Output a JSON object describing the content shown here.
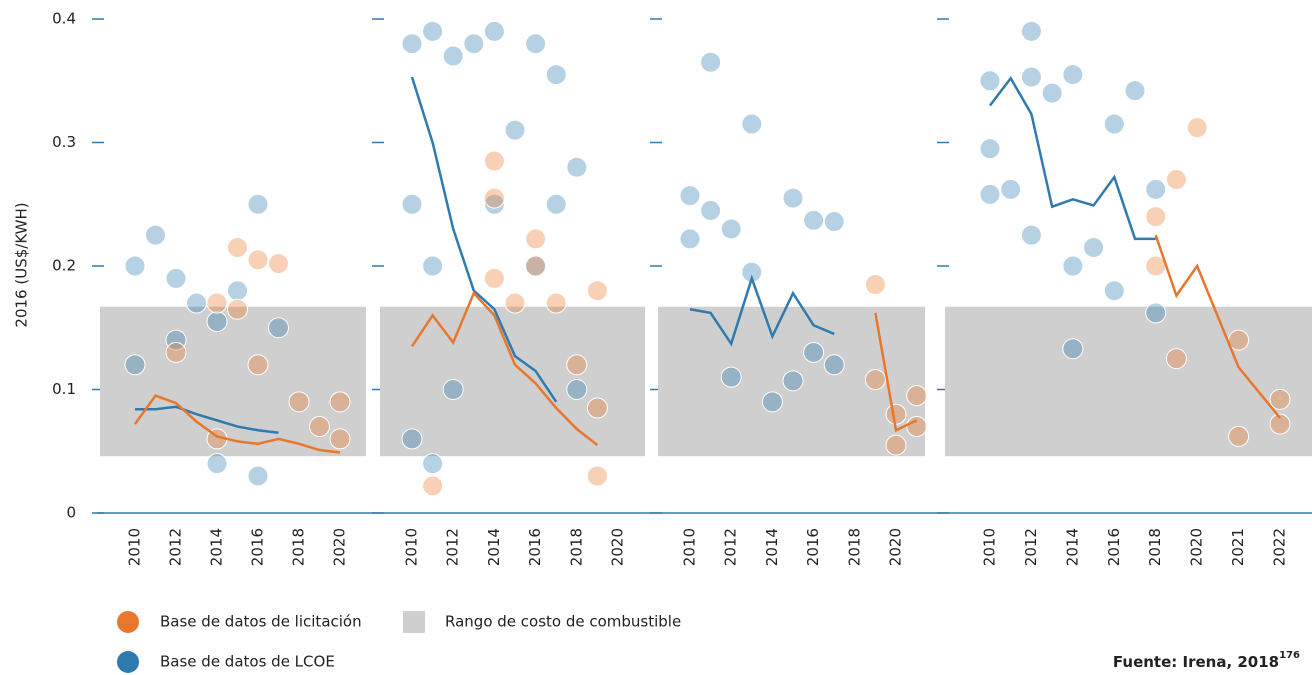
{
  "chart_data": {
    "type": "scatter",
    "ylabel": "2016 (US$/KWH)",
    "ylim": [
      0,
      0.4
    ],
    "yticks": [
      0,
      0.1,
      0.2,
      0.3,
      0.4
    ],
    "fuel_cost_range": [
      0.046,
      0.167
    ],
    "fuel_cost_label": "Rango de costo de combustible",
    "fuel_cost_color": "#cfcfcf",
    "series": [
      {
        "name": "Base de datos de licitación",
        "color": "#e8772e"
      },
      {
        "name": "Base de datos de LCOE",
        "color": "#2f7bb0"
      }
    ],
    "source": "Fuente: Irena, 2018",
    "source_ref": "176",
    "panels": [
      {
        "xlim": [
          2008.3,
          2021.3
        ],
        "xticks": [
          2010,
          2012,
          2014,
          2016,
          2018,
          2020
        ],
        "lcoe_line": {
          "x": [
            2010,
            2011,
            2012,
            2013,
            2014,
            2015,
            2016,
            2017
          ],
          "values": [
            0.084,
            0.084,
            0.086,
            0.08,
            0.075,
            0.07,
            0.067,
            0.065
          ]
        },
        "auction_line": {
          "x": [
            2010,
            2011,
            2012,
            2013,
            2014,
            2015,
            2016,
            2017,
            2018,
            2019,
            2020
          ],
          "values": [
            0.072,
            0.095,
            0.089,
            0.074,
            0.062,
            0.058,
            0.056,
            0.06,
            0.056,
            0.051,
            0.049
          ]
        },
        "lcoe_points": {
          "x": [
            2010,
            2011,
            2012,
            2013,
            2014,
            2015,
            2016,
            2017,
            2010,
            2012,
            2014,
            2016
          ],
          "values": [
            0.2,
            0.225,
            0.19,
            0.17,
            0.155,
            0.18,
            0.25,
            0.15,
            0.12,
            0.14,
            0.04,
            0.03
          ]
        },
        "auction_points": {
          "x": [
            2014,
            2015,
            2016,
            2017,
            2015,
            2016,
            2014,
            2018,
            2019,
            2020,
            2020,
            2012
          ],
          "values": [
            0.17,
            0.215,
            0.205,
            0.202,
            0.165,
            0.12,
            0.06,
            0.09,
            0.07,
            0.09,
            0.06,
            0.13
          ]
        }
      },
      {
        "xlim": [
          2008.4,
          2021.3
        ],
        "xticks": [
          2010,
          2012,
          2014,
          2016,
          2018,
          2020
        ],
        "lcoe_line": {
          "x": [
            2010,
            2011,
            2012,
            2013,
            2014,
            2015,
            2016,
            2017
          ],
          "values": [
            0.353,
            0.3,
            0.23,
            0.18,
            0.165,
            0.127,
            0.115,
            0.09
          ]
        },
        "auction_line": {
          "x": [
            2010,
            2011,
            2012,
            2013,
            2014,
            2015,
            2016,
            2017,
            2018,
            2019
          ],
          "values": [
            0.135,
            0.16,
            0.138,
            0.178,
            0.16,
            0.12,
            0.105,
            0.085,
            0.068,
            0.055
          ]
        },
        "lcoe_points": {
          "x": [
            2010,
            2010,
            2010,
            2011,
            2011,
            2012,
            2012,
            2013,
            2014,
            2014,
            2015,
            2016,
            2016,
            2017,
            2017,
            2018,
            2018,
            2011
          ],
          "values": [
            0.38,
            0.25,
            0.06,
            0.39,
            0.2,
            0.37,
            0.1,
            0.38,
            0.39,
            0.25,
            0.31,
            0.38,
            0.2,
            0.355,
            0.25,
            0.28,
            0.1,
            0.04
          ]
        },
        "auction_points": {
          "x": [
            2011,
            2014,
            2014,
            2014,
            2016,
            2016,
            2017,
            2018,
            2019,
            2019,
            2019,
            2015
          ],
          "values": [
            0.022,
            0.285,
            0.255,
            0.19,
            0.222,
            0.2,
            0.17,
            0.12,
            0.18,
            0.03,
            0.085,
            0.17
          ]
        }
      },
      {
        "xlim": [
          2008.4,
          2021.4
        ],
        "xticks": [
          2010,
          2012,
          2014,
          2016,
          2018,
          2020
        ],
        "lcoe_line": {
          "x": [
            2010,
            2011,
            2012,
            2013,
            2014,
            2015,
            2016,
            2017
          ],
          "values": [
            0.165,
            0.162,
            0.137,
            0.19,
            0.143,
            0.178,
            0.152,
            0.145
          ]
        },
        "auction_line": {
          "x": [
            2019,
            2020,
            2021
          ],
          "values": [
            0.162,
            0.067,
            0.075
          ]
        },
        "lcoe_points": {
          "x": [
            2010,
            2010,
            2011,
            2012,
            2012,
            2013,
            2011,
            2014,
            2015,
            2016,
            2017,
            2013,
            2015,
            2016,
            2017
          ],
          "values": [
            0.257,
            0.222,
            0.245,
            0.23,
            0.11,
            0.315,
            0.365,
            0.09,
            0.255,
            0.237,
            0.236,
            0.195,
            0.107,
            0.13,
            0.12
          ]
        },
        "auction_points": {
          "x": [
            2019,
            2019,
            2020,
            2020,
            2021,
            2021
          ],
          "values": [
            0.185,
            0.108,
            0.08,
            0.055,
            0.095,
            0.07
          ]
        }
      },
      {
        "xlim": [
          2007.8,
          2022.8
        ],
        "xticks": [
          2010,
          2012,
          2014,
          2016,
          2018,
          2020,
          2021,
          2022
        ],
        "lcoe_line": {
          "x": [
            2010,
            2011,
            2012,
            2013,
            2014,
            2015,
            2016,
            2017,
            2018
          ],
          "values": [
            0.33,
            0.352,
            0.323,
            0.248,
            0.254,
            0.249,
            0.272,
            0.222,
            0.222
          ]
        },
        "auction_line": {
          "x": [
            2018,
            2019,
            2020,
            2021,
            2022
          ],
          "values": [
            0.225,
            0.176,
            0.2,
            0.118,
            0.077
          ]
        },
        "lcoe_points": {
          "x": [
            2010,
            2010,
            2010,
            2011,
            2012,
            2012,
            2012,
            2013,
            2014,
            2014,
            2015,
            2016,
            2016,
            2017,
            2018,
            2014,
            2018
          ],
          "values": [
            0.35,
            0.295,
            0.258,
            0.262,
            0.39,
            0.353,
            0.225,
            0.34,
            0.2,
            0.355,
            0.215,
            0.18,
            0.315,
            0.342,
            0.162,
            0.133,
            0.262
          ]
        },
        "auction_points": {
          "x": [
            2018,
            2018,
            2019,
            2019,
            2020,
            2021,
            2021,
            2022,
            2022
          ],
          "values": [
            0.24,
            0.2,
            0.27,
            0.125,
            0.312,
            0.14,
            0.062,
            0.092,
            0.072
          ]
        }
      }
    ]
  }
}
